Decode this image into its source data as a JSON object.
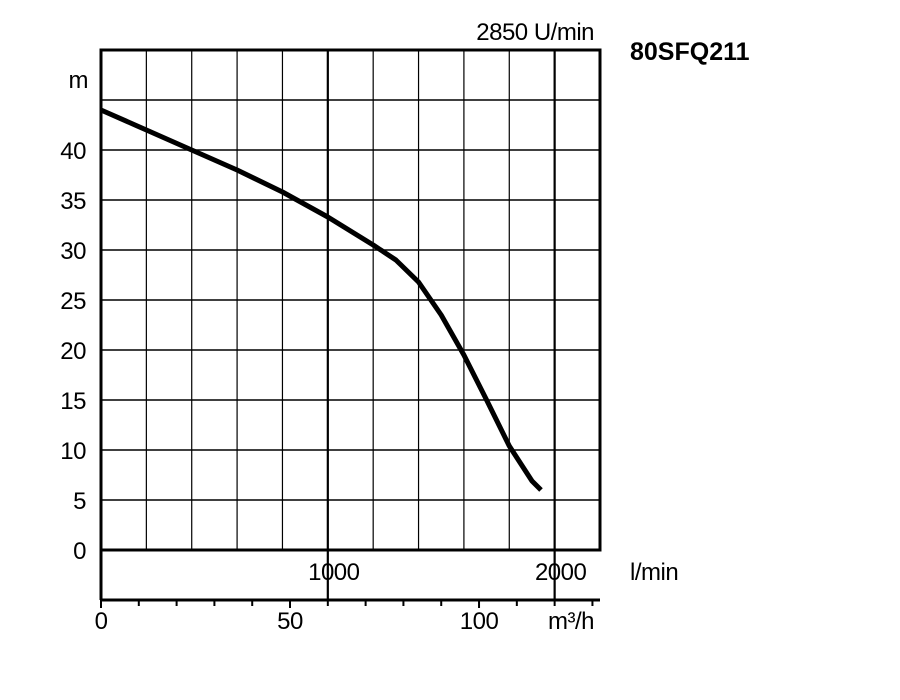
{
  "chart_data": {
    "type": "line",
    "title": "80SFQ211",
    "speed_label": "2850 U/min",
    "ylabel": "m",
    "xlabel": "l/min",
    "xlabel_secondary": "m³/h",
    "xlim": [
      0,
      2200
    ],
    "ylim": [
      0,
      50
    ],
    "y_ticks": [
      0,
      5,
      10,
      15,
      20,
      25,
      30,
      35,
      40
    ],
    "x_tick_labels": [
      {
        "value": 1000,
        "label": "1000"
      },
      {
        "value": 2000,
        "label": "2000"
      }
    ],
    "x_secondary_tick_labels": [
      {
        "value": 0,
        "label": "0"
      },
      {
        "value": 50,
        "label": "50"
      },
      {
        "value": 100,
        "label": "100"
      }
    ],
    "grid": true,
    "series": [
      {
        "x": [
          0,
          200,
          400,
          600,
          800,
          1000,
          1200,
          1300,
          1400,
          1500,
          1600,
          1700,
          1800,
          1900,
          1940
        ],
        "y": [
          44,
          42,
          40,
          38,
          35.8,
          33.3,
          30.5,
          29,
          26.8,
          23.5,
          19.5,
          15,
          10.4,
          6.9,
          6
        ]
      }
    ]
  }
}
